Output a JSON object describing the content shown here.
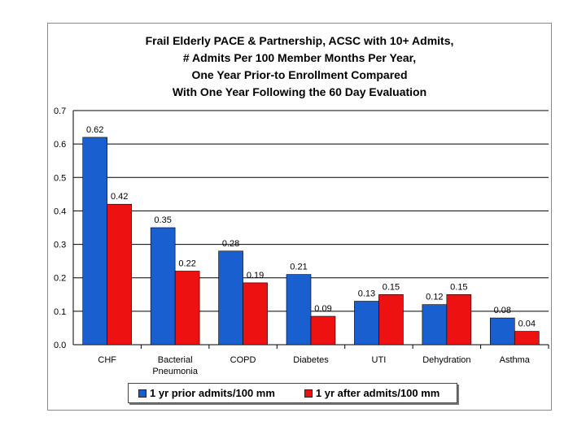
{
  "chart_data": {
    "type": "bar",
    "title_lines": [
      "Frail Elderly PACE & Partnership, ACSC with 10+ Admits,",
      "# Admits Per 100 Member Months Per Year,",
      "One Year Prior-to Enrollment Compared",
      "With One Year Following the 60 Day Evaluation"
    ],
    "categories": [
      [
        "CHF"
      ],
      [
        "Bacterial",
        "Pneumonia"
      ],
      [
        "COPD"
      ],
      [
        "Diabetes"
      ],
      [
        "UTI"
      ],
      [
        "Dehydration"
      ],
      [
        "Asthma"
      ]
    ],
    "series": [
      {
        "name": "1 yr prior admits/100 mm",
        "color": "#1a5fcf",
        "values": [
          0.62,
          0.35,
          0.28,
          0.21,
          0.13,
          0.12,
          0.08
        ],
        "labels": [
          "0.62",
          "0.35",
          "0.28",
          "0.21",
          "0.13",
          "0.12",
          "0.08"
        ]
      },
      {
        "name": "1 yr after admits/100 mm",
        "color": "#ee1111",
        "values": [
          0.42,
          0.22,
          0.185,
          0.085,
          0.15,
          0.15,
          0.04
        ],
        "labels": [
          "0.42",
          "0.22",
          "0.19",
          "0.09",
          "0.15",
          "0.15",
          "0.04"
        ]
      }
    ],
    "ylim": [
      0,
      0.7
    ],
    "yticks": [
      0,
      0.1,
      0.2,
      0.3,
      0.4,
      0.5,
      0.6,
      0.7
    ],
    "ytick_labels": [
      "0.0",
      "0.1",
      "0.2",
      "0.3",
      "0.4",
      "0.5",
      "0.6",
      "0.7"
    ],
    "grid": true,
    "legend_position": "bottom"
  }
}
